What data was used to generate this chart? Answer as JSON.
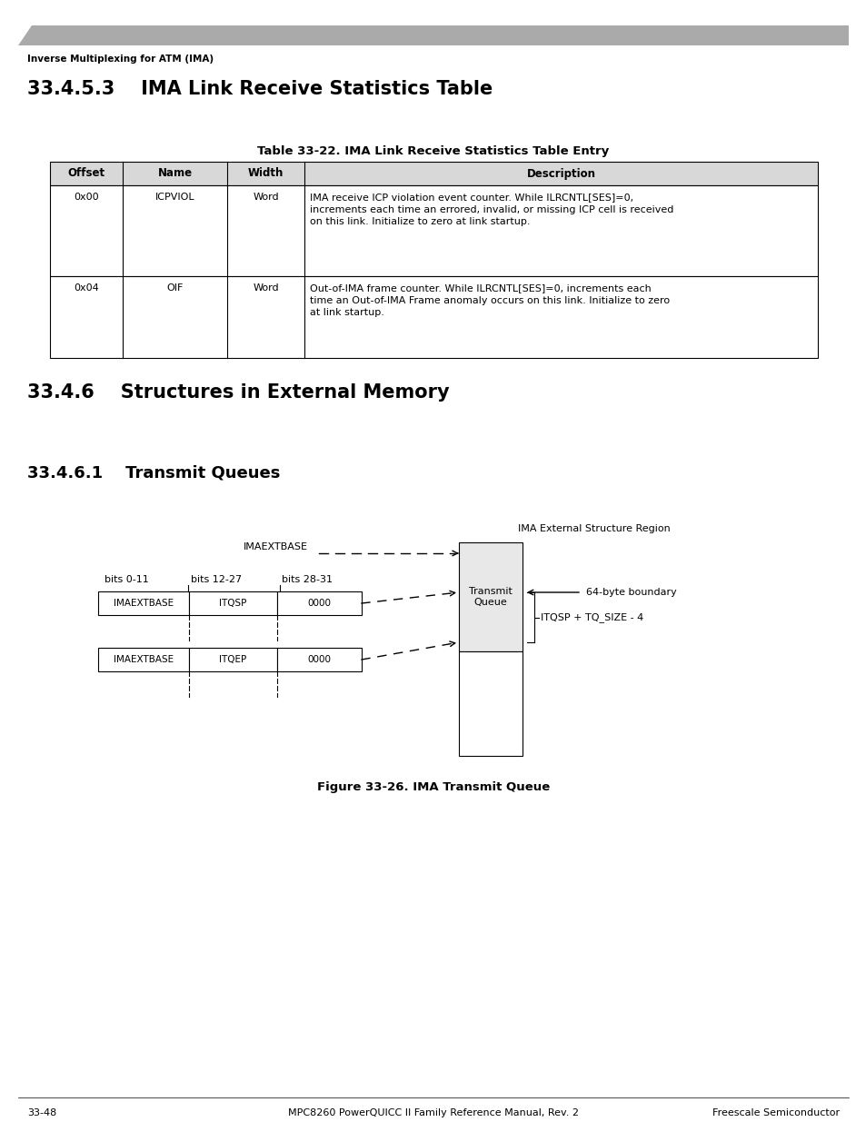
{
  "page_header_bg": "#aaaaaa",
  "page_header_text": "Inverse Multiplexing for ATM (IMA)",
  "section_title": "33.4.5.3    IMA Link Receive Statistics Table",
  "table_title": "Table 33-22. IMA Link Receive Statistics Table Entry",
  "table_headers": [
    "Offset",
    "Name",
    "Width",
    "Description"
  ],
  "table_rows": [
    [
      "0x00",
      "ICPVIOL",
      "Word",
      "IMA receive ICP violation event counter. While ILRCNTL[SES]=0,\nincrements each time an errored, invalid, or missing ICP cell is received\non this link. Initialize to zero at link startup."
    ],
    [
      "0x04",
      "OIF",
      "Word",
      "Out-of-IMA frame counter. While ILRCNTL[SES]=0, increments each\ntime an Out-of-IMA Frame anomaly occurs on this link. Initialize to zero\nat link startup."
    ]
  ],
  "section2_title": "33.4.6    Structures in External Memory",
  "section3_title": "33.4.6.1    Transmit Queues",
  "fig_caption": "Figure 33-26. IMA Transmit Queue",
  "footer_center": "MPC8260 PowerQUICC II Family Reference Manual, Rev. 2",
  "footer_left": "33-48",
  "footer_right": "Freescale Semiconductor",
  "bg_color": "#ffffff",
  "header_bar_color": "#aaaaaa",
  "table_header_fill": "#d8d8d8",
  "mem_upper_fill": "#e8e8e8",
  "mem_lower_fill": "#ffffff"
}
